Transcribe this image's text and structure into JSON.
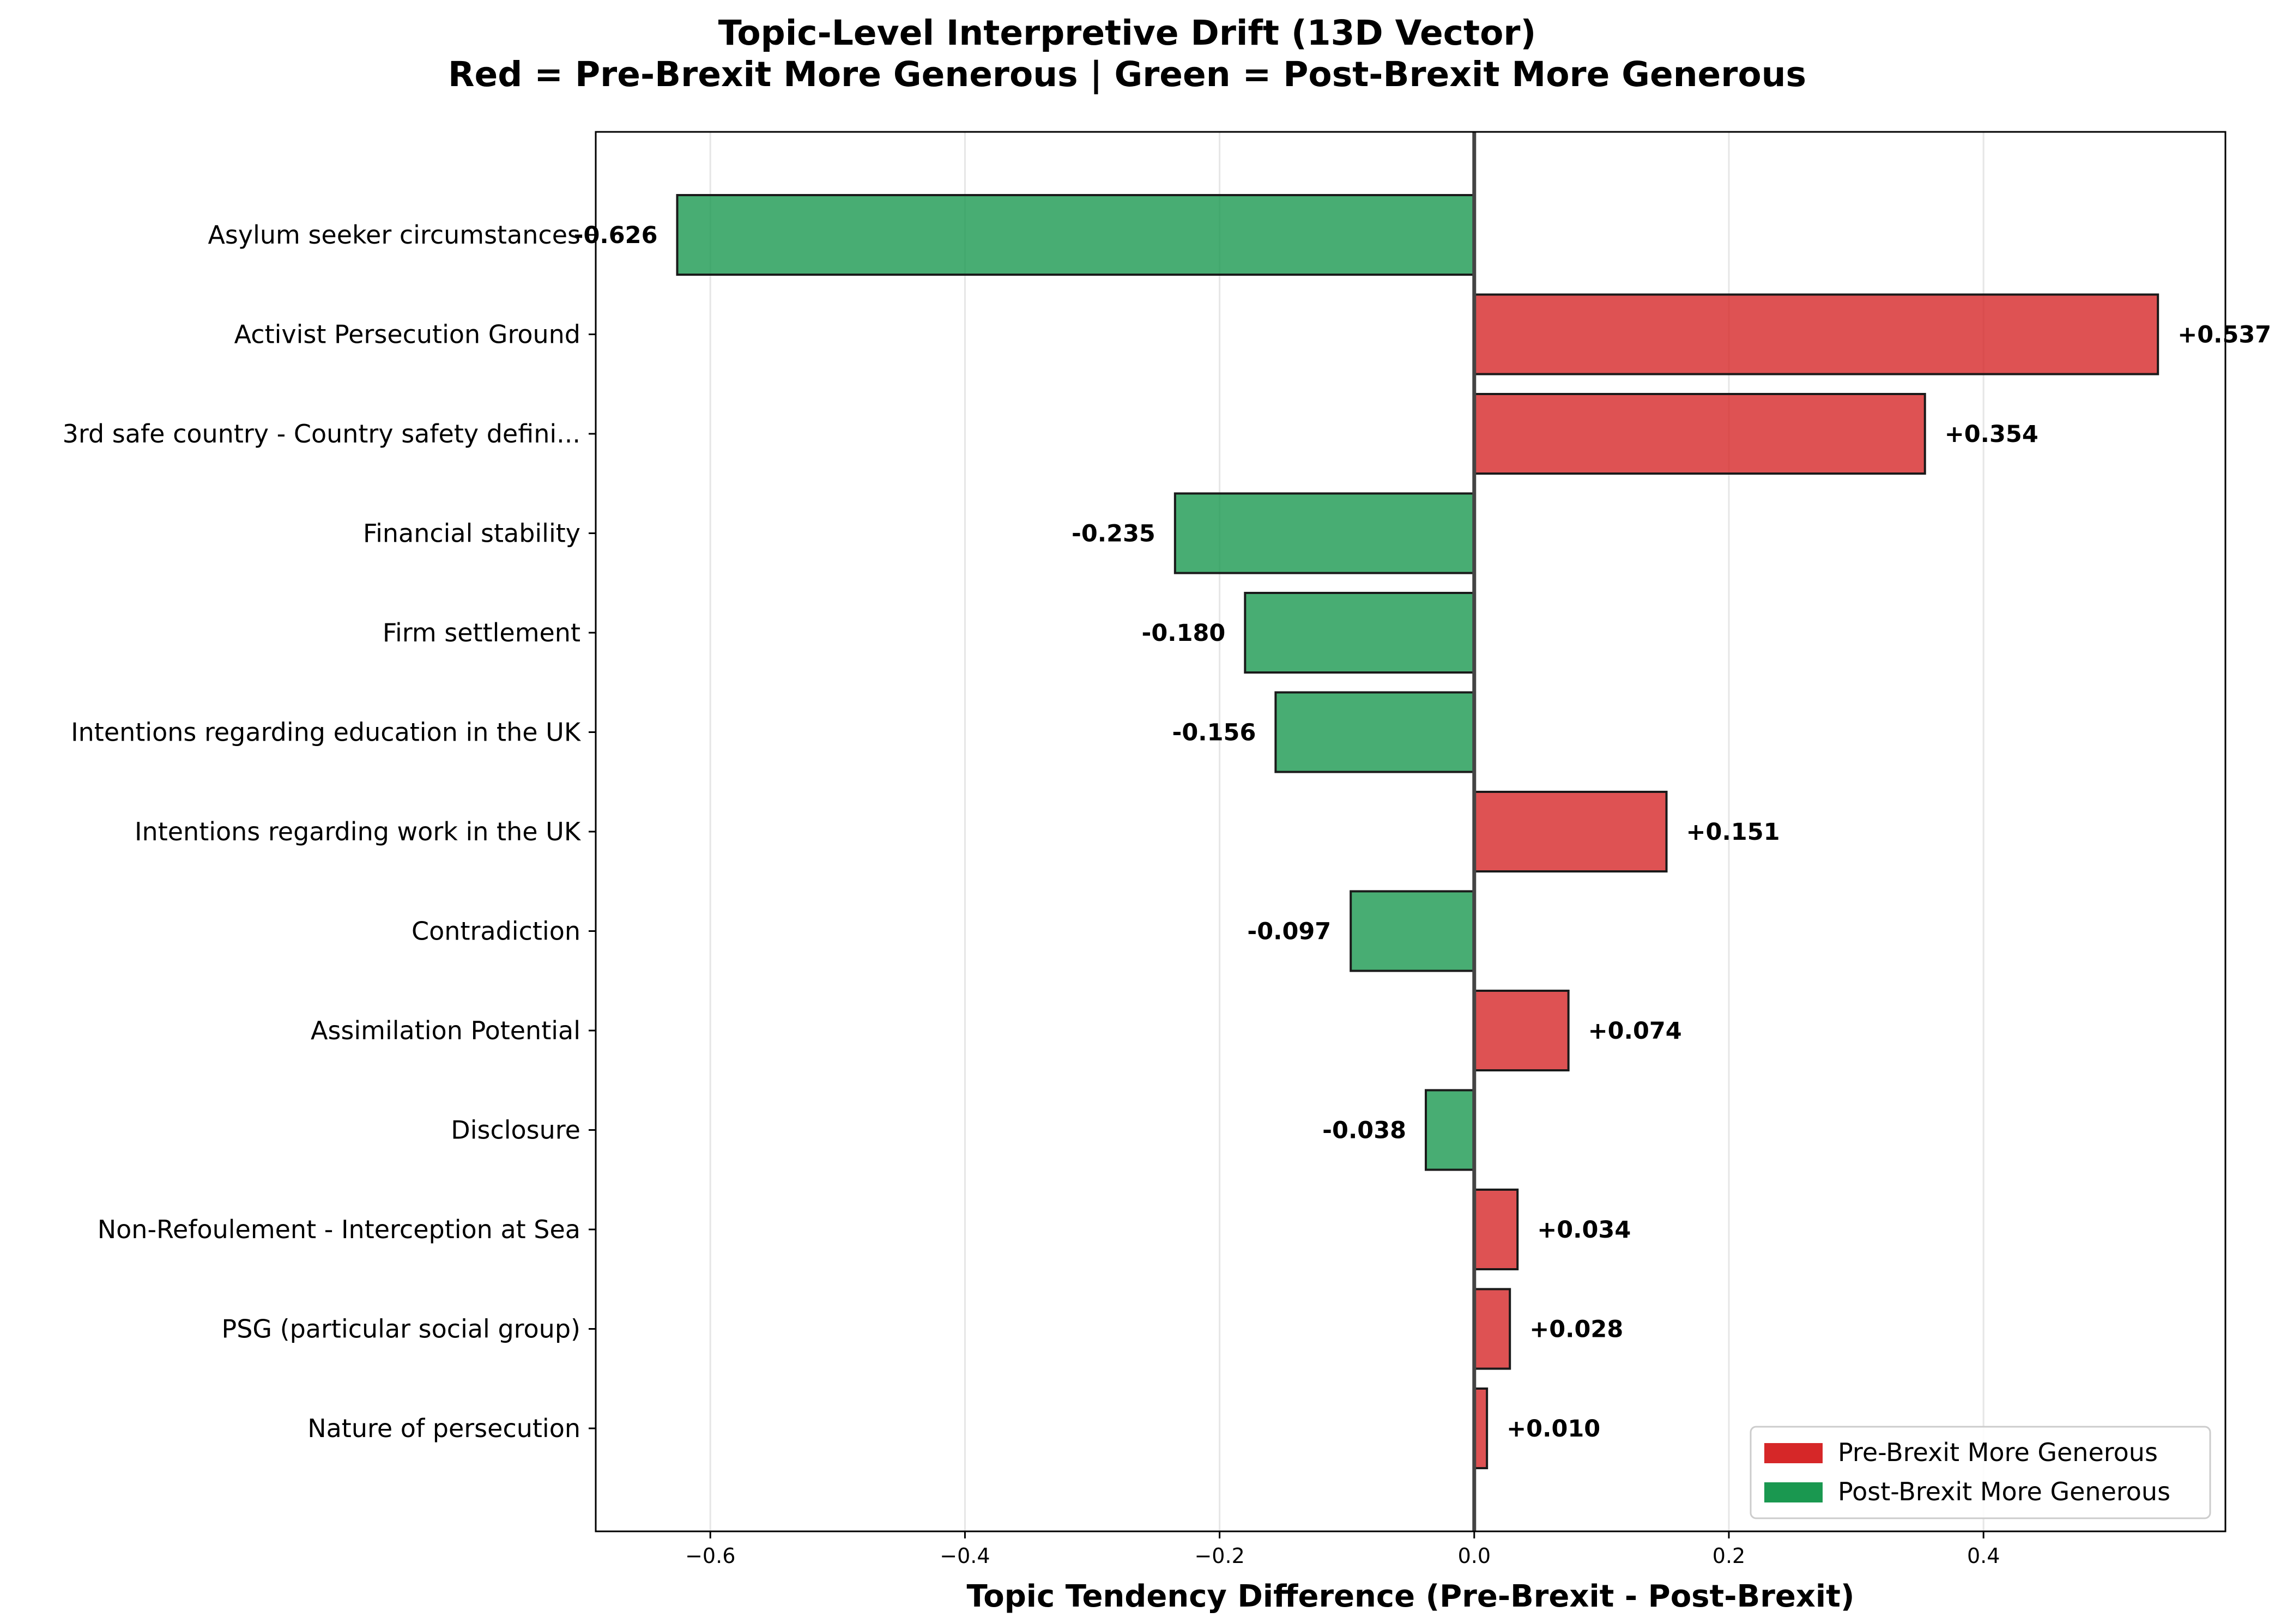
{
  "chart_data": {
    "type": "bar",
    "orientation": "horizontal",
    "title": "Topic-Level Interpretive Drift (13D Vector)",
    "subtitle": "Red = Pre-Brexit More Generous | Green = Post-Brexit More Generous",
    "xlabel": "Topic Tendency Difference (Pre-Brexit - Post-Brexit)",
    "ylabel": "",
    "xlim": [
      -0.69,
      0.59
    ],
    "xticks": [
      -0.6,
      -0.4,
      -0.2,
      0.0,
      0.2,
      0.4
    ],
    "xtick_labels": [
      "−0.6",
      "−0.4",
      "−0.2",
      "0.0",
      "0.2",
      "0.4"
    ],
    "grid": "vertical",
    "legend_position": "lower-right",
    "colors": {
      "positive": "#d62728",
      "negative": "#1a9850"
    },
    "legend": [
      {
        "label": "Pre-Brexit More Generous",
        "color": "#d62728"
      },
      {
        "label": "Post-Brexit More Generous",
        "color": "#1a9850"
      }
    ],
    "categories": [
      "Asylum seeker circumstances",
      "Activist Persecution Ground",
      "3rd safe country - Country safety defini...",
      "Financial stability",
      "Firm settlement",
      "Intentions regarding education in the UK",
      "Intentions regarding work in the UK",
      "Contradiction",
      "Assimilation Potential",
      "Disclosure",
      "Non-Refoulement - Interception at Sea",
      "PSG (particular social group)",
      "Nature of persecution"
    ],
    "values": [
      -0.626,
      0.537,
      0.354,
      -0.235,
      -0.18,
      -0.156,
      0.151,
      -0.097,
      0.074,
      -0.038,
      0.034,
      0.028,
      0.01
    ],
    "value_labels": [
      "-0.626",
      "+0.537",
      "+0.354",
      "-0.235",
      "-0.180",
      "-0.156",
      "+0.151",
      "-0.097",
      "+0.074",
      "-0.038",
      "+0.034",
      "+0.028",
      "+0.010"
    ]
  }
}
